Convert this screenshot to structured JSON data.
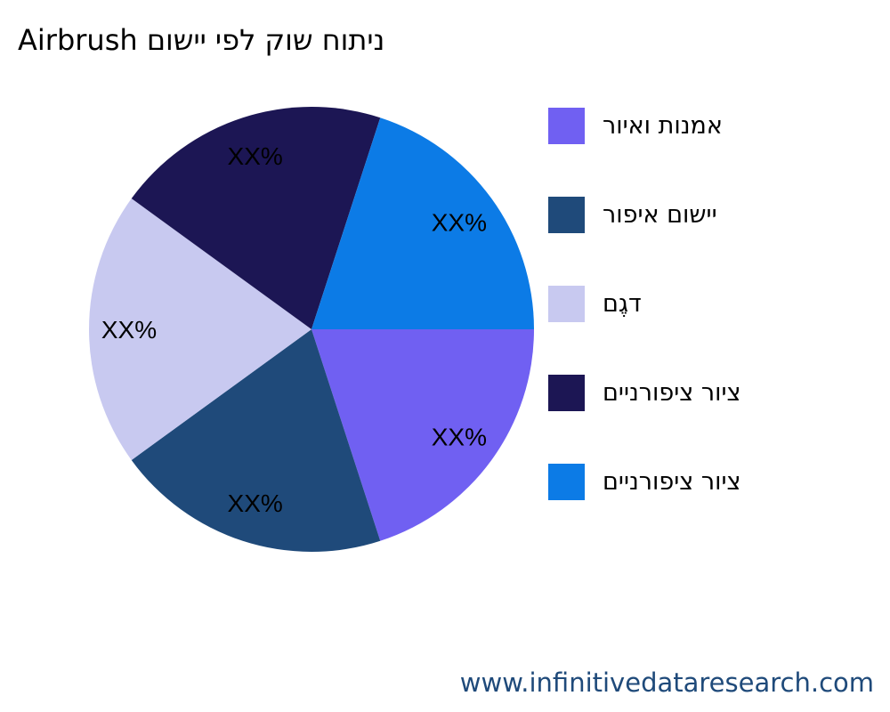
{
  "chart_data": {
    "type": "pie",
    "title": "Airbrush ניתוח שוק לפי יישום",
    "categories": [
      "אמנות ואיור",
      "יישום איפור",
      "דגֶם",
      "ציור ציפורניים",
      "ציור ציפורניים"
    ],
    "values": [
      20,
      20,
      20,
      20,
      20
    ],
    "data_labels": [
      "XX%",
      "XX%",
      "XX%",
      "XX%",
      "XX%"
    ],
    "colors": [
      "#7060F2",
      "#1F4A7A",
      "#C8C9F0",
      "#1C1654",
      "#0C7BE6"
    ],
    "legend_position": "right"
  },
  "footer": {
    "text": "www.infinitivedataresearch.com"
  }
}
